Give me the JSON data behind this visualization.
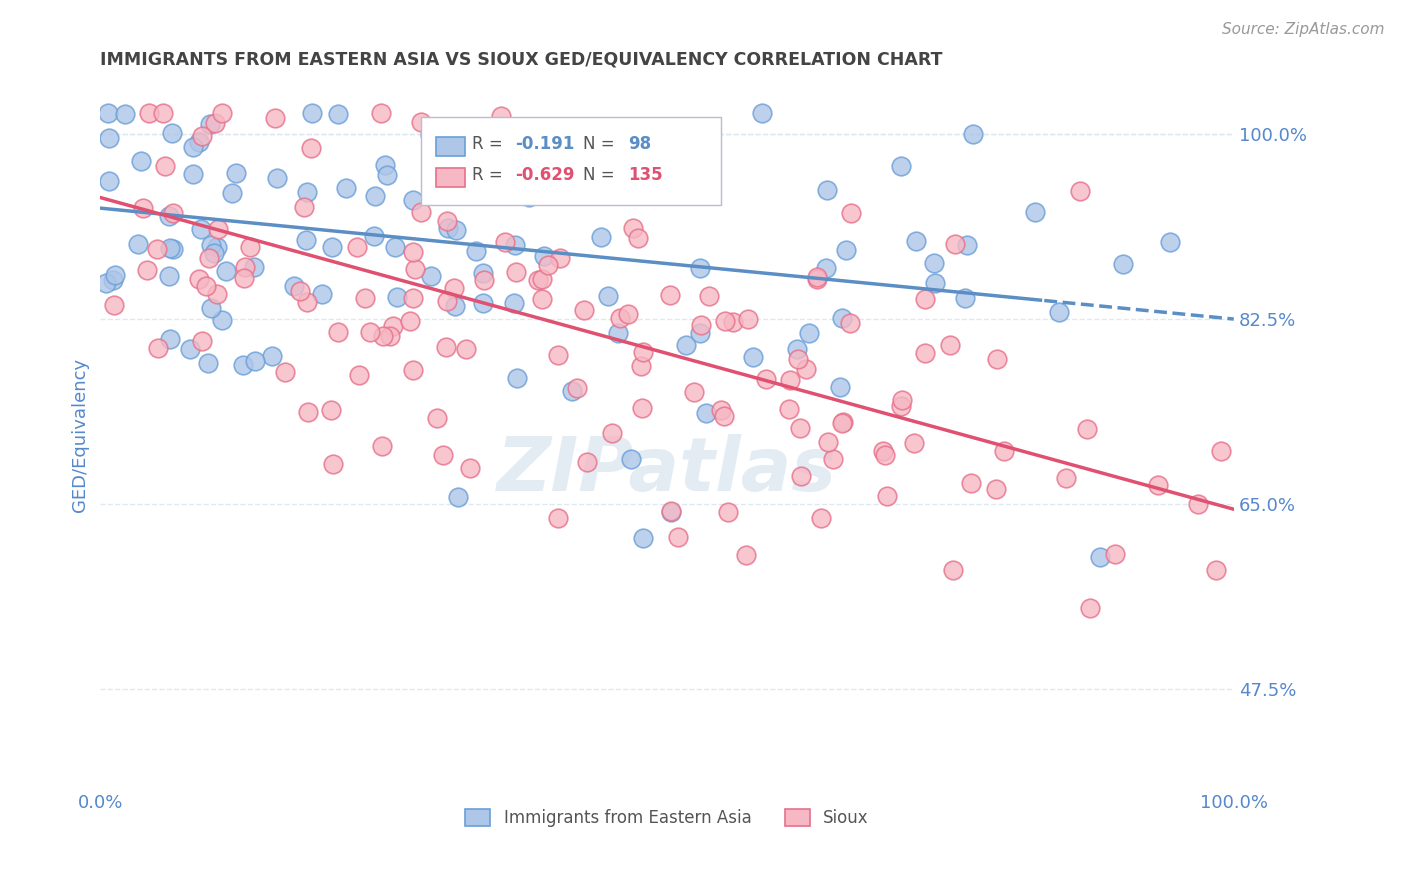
{
  "title": "IMMIGRANTS FROM EASTERN ASIA VS SIOUX GED/EQUIVALENCY CORRELATION CHART",
  "source": "Source: ZipAtlas.com",
  "ylabel": "GED/Equivalency",
  "legend_labels": [
    "Immigrants from Eastern Asia",
    "Sioux"
  ],
  "blue_R": -0.191,
  "blue_N": 98,
  "pink_R": -0.629,
  "pink_N": 135,
  "blue_color": "#aec6e8",
  "pink_color": "#f5b8c4",
  "blue_edge_color": "#6a9fd8",
  "pink_edge_color": "#e8708a",
  "blue_line_color": "#5b8ec4",
  "pink_line_color": "#e05070",
  "title_color": "#444444",
  "axis_label_color": "#5588cc",
  "grid_color": "#dde8f0",
  "watermark_color": "#c8d8e8",
  "xmin": 0.0,
  "xmax": 1.0,
  "ymin": 0.38,
  "ymax": 1.05,
  "yticks": [
    0.475,
    0.65,
    0.825,
    1.0
  ],
  "ytick_labels": [
    "47.5%",
    "65.0%",
    "82.5%",
    "100.0%"
  ],
  "xticks": [
    0.0,
    1.0
  ],
  "xtick_labels": [
    "0.0%",
    "100.0%"
  ],
  "blue_intercept": 0.93,
  "blue_slope": -0.105,
  "pink_intercept": 0.94,
  "pink_slope": -0.295
}
